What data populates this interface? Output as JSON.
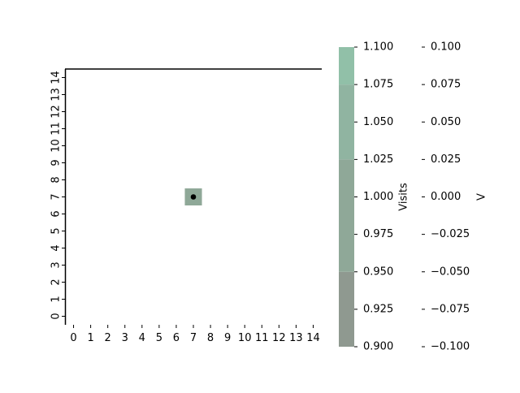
{
  "chart_data": {
    "type": "heatmap",
    "title": "",
    "xlabel": "",
    "ylabel": "",
    "x_ticks": [
      "0",
      "1",
      "2",
      "3",
      "4",
      "5",
      "6",
      "7",
      "8",
      "9",
      "10",
      "11",
      "12",
      "13",
      "14"
    ],
    "y_ticks": [
      "0",
      "1",
      "2",
      "3",
      "4",
      "5",
      "6",
      "7",
      "8",
      "9",
      "10",
      "11",
      "12",
      "13",
      "14"
    ],
    "xlim": [
      -0.5,
      14.5
    ],
    "ylim": [
      -0.5,
      14.5
    ],
    "grid": false,
    "cells": [
      {
        "x": 7,
        "y": 7,
        "visits": 1.0,
        "color": "#8fa898"
      }
    ],
    "points": [
      {
        "x": 7,
        "y": 7,
        "color": "#000000"
      }
    ],
    "colorbars": [
      {
        "label": "Visits",
        "range": [
          0.9,
          1.1
        ],
        "tick_values": [
          0.9,
          0.925,
          0.95,
          0.975,
          1.0,
          1.025,
          1.05,
          1.075,
          1.1
        ],
        "tick_labels": [
          "0.900",
          "0.925",
          "0.950",
          "0.975",
          "1.000",
          "1.025",
          "1.050",
          "1.075",
          "1.100"
        ],
        "bands": [
          {
            "from": 0.9,
            "to": 0.95,
            "color": "#8f9990"
          },
          {
            "from": 0.95,
            "to": 1.025,
            "color": "#8fa898"
          },
          {
            "from": 1.025,
            "to": 1.075,
            "color": "#90b4a1"
          },
          {
            "from": 1.075,
            "to": 1.1,
            "color": "#91c0a8"
          }
        ]
      },
      {
        "label": "V",
        "range": [
          -0.1,
          0.1
        ],
        "tick_values": [
          -0.1,
          -0.075,
          -0.05,
          -0.025,
          0.0,
          0.025,
          0.05,
          0.075,
          0.1
        ],
        "tick_labels": [
          "−0.100",
          "−0.075",
          "−0.050",
          "−0.025",
          "0.000",
          "0.025",
          "0.050",
          "0.075",
          "0.100"
        ],
        "bands": []
      }
    ]
  }
}
